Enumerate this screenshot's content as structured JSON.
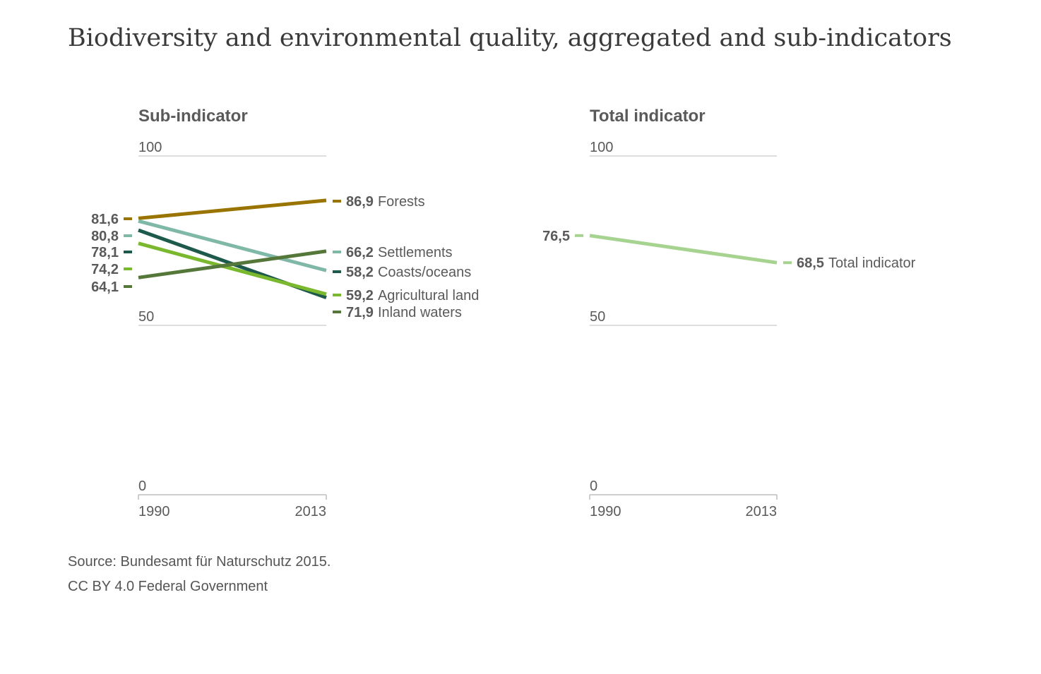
{
  "title": "Biodiversity and environmental quality, aggregated and sub-indicators",
  "chart_data": [
    {
      "type": "line",
      "title": "Sub-indicator",
      "x": [
        "1990",
        "2013"
      ],
      "ylim": [
        0,
        100
      ],
      "yticks": [
        "100",
        "50",
        "0"
      ],
      "series": [
        {
          "name": "Forests",
          "values": [
            81.6,
            86.9
          ],
          "labels": [
            "81,6",
            "86,9"
          ],
          "color": "#9a7400"
        },
        {
          "name": "Settlements",
          "values": [
            80.8,
            66.2
          ],
          "labels": [
            "80,8",
            "66,2"
          ],
          "color": "#80b8a8"
        },
        {
          "name": "Coasts/oceans",
          "values": [
            78.1,
            58.2
          ],
          "labels": [
            "78,1",
            "58,2"
          ],
          "color": "#1e5a4c"
        },
        {
          "name": "Agricultural land",
          "values": [
            74.2,
            59.2
          ],
          "labels": [
            "74,2",
            "59,2"
          ],
          "color": "#7ab82e"
        },
        {
          "name": "Inland waters",
          "values": [
            64.1,
            71.9
          ],
          "labels": [
            "64,1",
            "71,9"
          ],
          "color": "#55783a"
        }
      ]
    },
    {
      "type": "line",
      "title": "Total indicator",
      "x": [
        "1990",
        "2013"
      ],
      "ylim": [
        0,
        100
      ],
      "yticks": [
        "100",
        "50",
        "0"
      ],
      "series": [
        {
          "name": "Total indicator",
          "values": [
            76.5,
            68.5
          ],
          "labels": [
            "76,5",
            "68,5"
          ],
          "color": "#a6d490"
        }
      ]
    }
  ],
  "footer": {
    "source": "Source: Bundesamt für Naturschutz 2015.",
    "license": "CC BY 4.0 Federal Government"
  }
}
